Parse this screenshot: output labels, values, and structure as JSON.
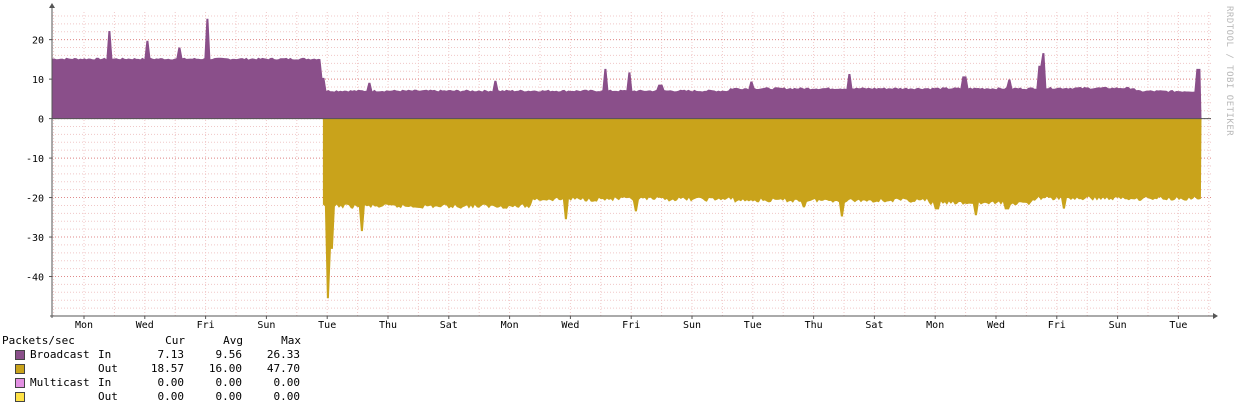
{
  "chart_data": {
    "type": "area",
    "watermark": "RRDTOOL / TOBI OETIKER",
    "ylim": [
      -50,
      27
    ],
    "y_ticks": [
      20,
      10,
      0,
      -10,
      -20,
      -30,
      -40
    ],
    "x_tick_labels": [
      "Mon",
      "Wed",
      "Fri",
      "Sun",
      "Tue",
      "Thu",
      "Sat",
      "Mon",
      "Wed",
      "Fri",
      "Sun",
      "Tue",
      "Thu",
      "Sat",
      "Mon",
      "Wed",
      "Fri",
      "Sun",
      "Tue"
    ],
    "grid": true,
    "series": [
      {
        "name": "Broadcast In",
        "color": "#8a4f8a",
        "sign": 1,
        "segments": [
          {
            "from": 0.0,
            "to": 4.45,
            "level": 15.2
          },
          {
            "from": 4.45,
            "to": 11.15,
            "level": 7.1
          },
          {
            "from": 11.15,
            "to": 16.1,
            "level": 7.7
          },
          {
            "from": 16.1,
            "to": 17.8,
            "level": 7.8
          },
          {
            "from": 17.8,
            "to": 18.9,
            "level": 7.0
          }
        ],
        "spikes": [
          [
            0.95,
            22.2
          ],
          [
            1.55,
            19.7
          ],
          [
            2.1,
            18.0
          ],
          [
            2.55,
            25.3
          ],
          [
            4.45,
            10.3
          ],
          [
            5.2,
            9.1
          ],
          [
            7.3,
            9.6
          ],
          [
            9.1,
            12.6
          ],
          [
            9.5,
            11.7
          ],
          [
            10.0,
            8.6
          ],
          [
            11.5,
            9.4
          ],
          [
            13.1,
            11.3
          ],
          [
            15.0,
            10.7
          ],
          [
            15.75,
            9.9
          ],
          [
            16.25,
            13.4
          ],
          [
            16.3,
            16.6
          ],
          [
            18.85,
            12.6
          ]
        ]
      },
      {
        "name": "Broadcast Out",
        "color": "#c9a31b",
        "sign": -1,
        "segments": [
          {
            "from": 4.45,
            "to": 7.9,
            "level": 22.3
          },
          {
            "from": 7.9,
            "to": 11.2,
            "level": 20.5
          },
          {
            "from": 11.2,
            "to": 14.4,
            "level": 20.8
          },
          {
            "from": 14.4,
            "to": 16.1,
            "level": 21.5
          },
          {
            "from": 16.1,
            "to": 18.9,
            "level": 20.3
          }
        ],
        "spikes": [
          [
            4.52,
            45.5
          ],
          [
            4.6,
            33.0
          ],
          [
            5.1,
            28.5
          ],
          [
            8.45,
            25.5
          ],
          [
            9.6,
            23.5
          ],
          [
            12.35,
            22.5
          ],
          [
            13.0,
            24.8
          ],
          [
            14.55,
            23.0
          ],
          [
            15.2,
            24.5
          ],
          [
            15.7,
            23.0
          ],
          [
            16.65,
            22.8
          ]
        ]
      }
    ],
    "legend": {
      "title": "Packets/sec",
      "headers": [
        "Cur",
        "Avg",
        "Max"
      ],
      "rows": [
        {
          "label": "Broadcast",
          "dir": "In",
          "color": "#8a4f8a",
          "cur": "7.13",
          "avg": "9.56",
          "max": "26.33"
        },
        {
          "label": "",
          "dir": "Out",
          "color": "#c9a31b",
          "cur": "18.57",
          "avg": "16.00",
          "max": "47.70"
        },
        {
          "label": "Multicast",
          "dir": "In",
          "color": "#e290e2",
          "cur": "0.00",
          "avg": "0.00",
          "max": "0.00"
        },
        {
          "label": "",
          "dir": "Out",
          "color": "#ffe246",
          "cur": "0.00",
          "avg": "0.00",
          "max": "0.00"
        }
      ]
    }
  }
}
